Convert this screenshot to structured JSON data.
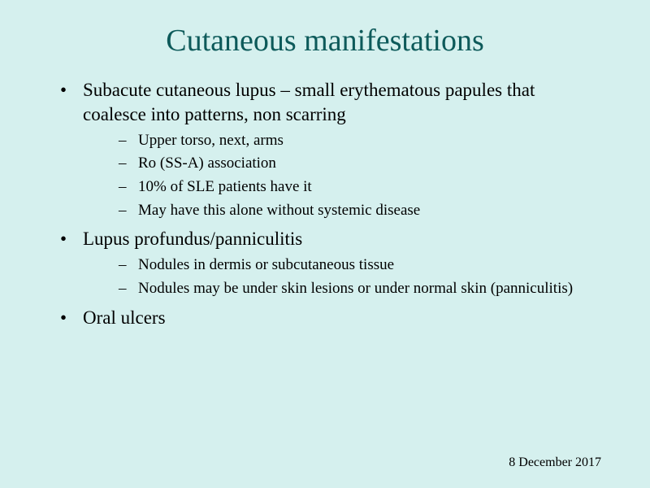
{
  "slide": {
    "title": "Cutaneous manifestations",
    "title_color": "#0d5a5a",
    "title_fontsize": 38,
    "background_color": "#d5f0ee",
    "body_fontsize": 23,
    "sub_fontsize": 19,
    "text_color": "#000000",
    "bullets": [
      {
        "text": "Subacute cutaneous lupus – small erythematous papules that coalesce into patterns, non scarring",
        "sub": [
          "Upper torso, next, arms",
          "Ro (SS-A) association",
          "10% of SLE patients have it",
          "May have this alone without systemic disease"
        ]
      },
      {
        "text": "Lupus profundus/panniculitis",
        "sub": [
          "Nodules in dermis or subcutaneous tissue",
          "Nodules may be under skin lesions or under normal skin (panniculitis)"
        ]
      },
      {
        "text": "Oral ulcers",
        "sub": []
      }
    ],
    "date": "8 December 2017"
  }
}
